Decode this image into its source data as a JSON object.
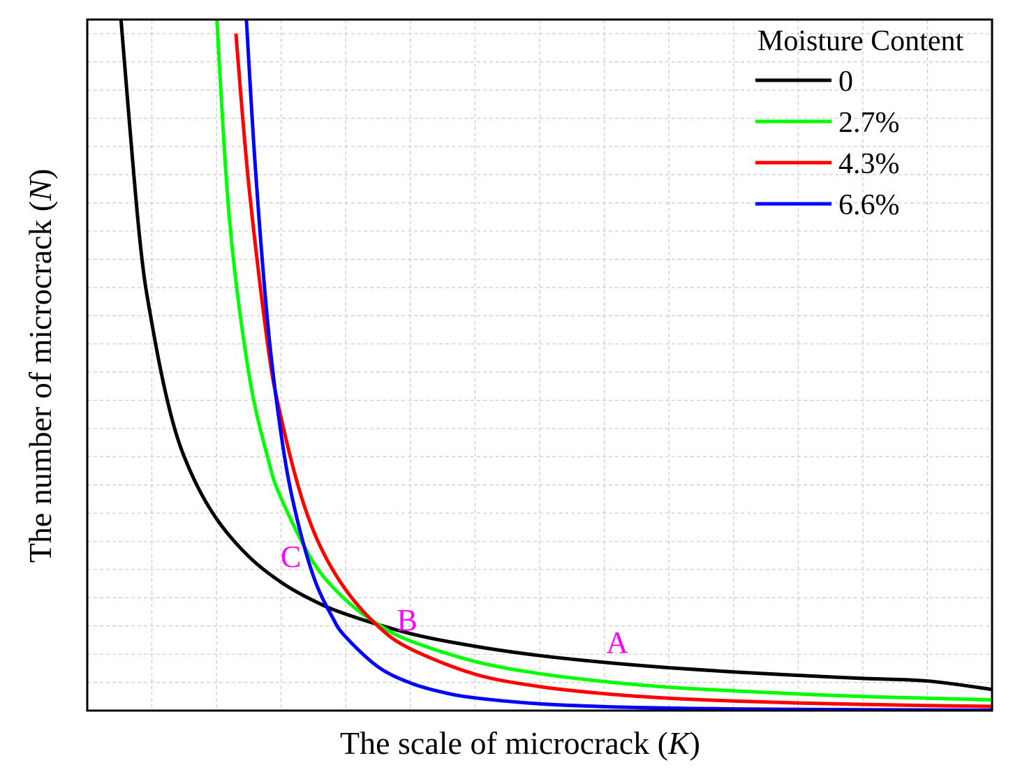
{
  "chart_data": {
    "type": "line",
    "title": "",
    "xlabel": {
      "prefix": "The scale of microcrack (",
      "var": "K",
      "suffix": ")"
    },
    "ylabel": {
      "prefix": "The number of microcrack (",
      "var": "N",
      "suffix": ")"
    },
    "xlim": [
      0,
      14
    ],
    "ylim": [
      0,
      24.5
    ],
    "grid": true,
    "tick_labels_shown": false,
    "legend": {
      "title": "Moisture Content",
      "position": "top-right"
    },
    "series": [
      {
        "name": "0",
        "color": "#000000",
        "x": [
          0.5,
          0.8,
          1.0,
          1.3,
          1.6,
          2.0,
          2.5,
          3.0,
          3.5,
          4.0,
          5.0,
          6.0,
          7.0,
          8.0,
          9.0,
          10.0,
          11.0,
          12.0,
          13.0,
          14.0
        ],
        "y": [
          25.1,
          17.0,
          13.73,
          10.43,
          8.46,
          6.8,
          5.46,
          4.55,
          3.9,
          3.42,
          2.73,
          2.28,
          1.95,
          1.71,
          1.52,
          1.37,
          1.25,
          1.14,
          1.05,
          0.75
        ]
      },
      {
        "name": "2.7%",
        "color": "#00ff00",
        "x": [
          2.0,
          2.2,
          2.5,
          2.8,
          3.0,
          3.5,
          4.0,
          4.5,
          5.0,
          6.0,
          7.0,
          8.0,
          9.0,
          10.0,
          11.0,
          12.0,
          13.0,
          14.0
        ],
        "y": [
          24.71,
          17.42,
          11.95,
          8.9,
          7.53,
          5.25,
          3.92,
          3.06,
          2.47,
          1.74,
          1.31,
          1.03,
          0.83,
          0.7,
          0.59,
          0.5,
          0.44,
          0.38
        ]
      },
      {
        "name": "4.3%",
        "color": "#ff0000",
        "x": [
          2.3,
          2.5,
          2.8,
          3.0,
          3.3,
          3.6,
          4.0,
          4.5,
          5.0,
          6.0,
          7.0,
          8.0,
          9.0,
          10.0,
          11.0,
          12.0,
          13.0,
          14.0
        ],
        "y": [
          24.0,
          18.62,
          12.84,
          10.38,
          7.68,
          5.85,
          4.28,
          2.99,
          2.19,
          1.29,
          0.85,
          0.6,
          0.44,
          0.34,
          0.27,
          0.22,
          0.18,
          0.15
        ]
      },
      {
        "name": "6.6%",
        "color": "#0000ff",
        "x": [
          2.45,
          2.6,
          2.8,
          3.0,
          3.2,
          3.5,
          3.8,
          4.0,
          4.5,
          5.0,
          5.5,
          6.0,
          7.0,
          8.0,
          9.0,
          10.0,
          12.0,
          14.0
        ],
        "y": [
          25.0,
          19.28,
          13.55,
          9.79,
          7.25,
          4.76,
          3.28,
          2.61,
          1.55,
          0.98,
          0.65,
          0.45,
          0.24,
          0.14,
          0.09,
          0.06,
          0.03,
          0.015
        ]
      }
    ],
    "annotations": [
      {
        "label": "A",
        "x": 8.2,
        "y": 2.05,
        "color": "#ff00ff"
      },
      {
        "label": "B",
        "x": 4.95,
        "y": 2.85,
        "color": "#ff00ff"
      },
      {
        "label": "C",
        "x": 3.15,
        "y": 5.1,
        "color": "#ff00ff"
      }
    ]
  }
}
